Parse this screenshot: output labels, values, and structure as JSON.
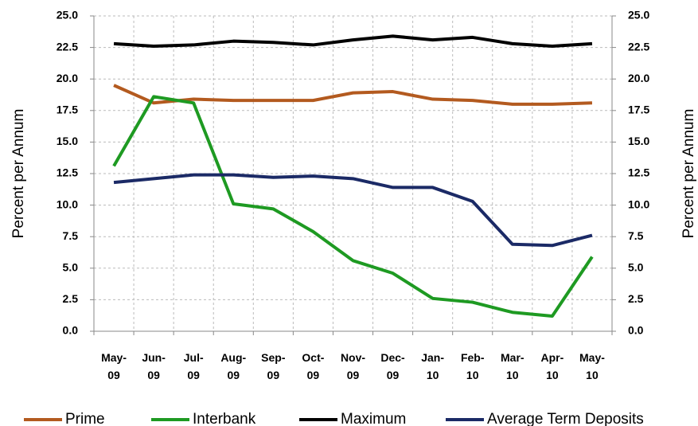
{
  "chart_data": {
    "type": "line",
    "y_label": "Percent per Annum",
    "y2_label": "Percent per Annum",
    "categories": [
      "May-09",
      "Jun-09",
      "Jul-09",
      "Aug-09",
      "Sep-09",
      "Oct-09",
      "Nov-09",
      "Dec-09",
      "Jan-10",
      "Feb-10",
      "Mar-10",
      "Apr-10",
      "May-10"
    ],
    "series": [
      {
        "name": "Prime",
        "color": "#b35a1f",
        "values": [
          19.5,
          18.1,
          18.4,
          18.3,
          18.3,
          18.3,
          18.9,
          19.0,
          18.4,
          18.3,
          18.0,
          18.0,
          18.1
        ]
      },
      {
        "name": "Interbank",
        "color": "#1e9a22",
        "values": [
          13.1,
          18.6,
          18.1,
          10.1,
          9.7,
          7.9,
          5.6,
          4.6,
          2.6,
          2.3,
          1.5,
          1.2,
          5.9
        ]
      },
      {
        "name": "Maximum",
        "color": "#000000",
        "values": [
          22.8,
          22.6,
          22.7,
          23.0,
          22.9,
          22.7,
          23.1,
          23.4,
          23.1,
          23.3,
          22.8,
          22.6,
          22.8
        ]
      },
      {
        "name": "Average Term Deposits",
        "color": "#1b2a66",
        "values": [
          11.8,
          12.1,
          12.4,
          12.4,
          12.2,
          12.3,
          12.1,
          11.4,
          11.4,
          10.3,
          6.9,
          6.8,
          7.6
        ]
      }
    ],
    "ylim": [
      0,
      25
    ],
    "yticks": [
      {
        "value": 0,
        "label": "0.0"
      },
      {
        "value": 2.5,
        "label": "2.5"
      },
      {
        "value": 5,
        "label": "5.0"
      },
      {
        "value": 7.5,
        "label": "7.5"
      },
      {
        "value": 10,
        "label": "10.0"
      },
      {
        "value": 12.5,
        "label": "12.5"
      },
      {
        "value": 15,
        "label": "15.0"
      },
      {
        "value": 17.5,
        "label": "17.5"
      },
      {
        "value": 20,
        "label": "20.0"
      },
      {
        "value": 22.5,
        "label": "22.5"
      },
      {
        "value": 25,
        "label": "25.0"
      }
    ],
    "y2lim": [
      0,
      25
    ],
    "y2ticks": [
      {
        "value": 0,
        "label": "0.0"
      },
      {
        "value": 2.5,
        "label": "2.5"
      },
      {
        "value": 5,
        "label": "5.0"
      },
      {
        "value": 7.5,
        "label": "7.5"
      },
      {
        "value": 10,
        "label": "10.0"
      },
      {
        "value": 12.5,
        "label": "12.5"
      },
      {
        "value": 15,
        "label": "15.0"
      },
      {
        "value": 17.5,
        "label": "17.5"
      },
      {
        "value": 20,
        "label": "20.0"
      },
      {
        "value": 22.5,
        "label": "22.5"
      },
      {
        "value": 25,
        "label": "25.0"
      }
    ],
    "grid": true,
    "legend": "bottom"
  }
}
